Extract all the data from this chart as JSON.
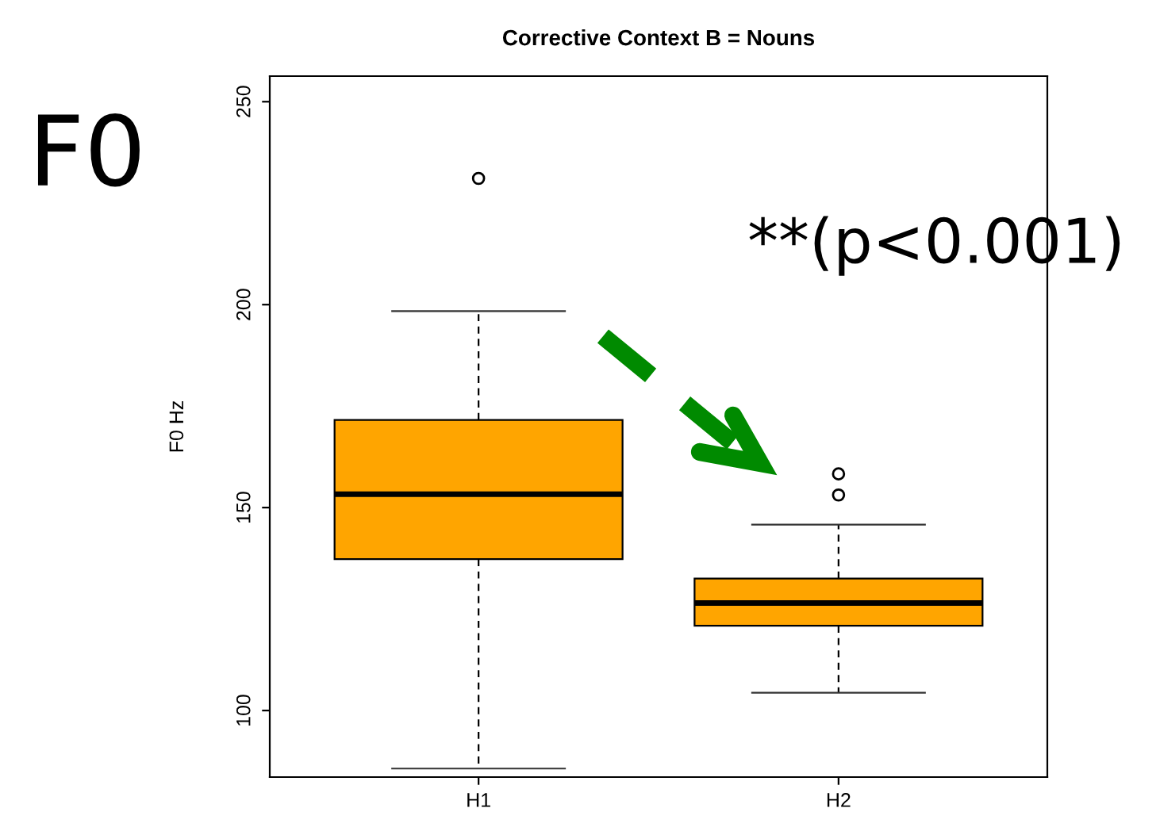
{
  "chart_data": {
    "type": "box",
    "title": "Corrective Context B = Nouns",
    "ylabel": "F0 Hz",
    "categories": [
      "H1",
      "H2"
    ],
    "series": [
      {
        "color": "#ffa500",
        "boxes": [
          {
            "low": 85.7,
            "q1": 137.3,
            "median": 153.3,
            "q3": 171.6,
            "high": 198.4,
            "outliers": [
              231.1
            ]
          },
          {
            "low": 104.4,
            "q1": 120.9,
            "median": 126.5,
            "q3": 132.5,
            "high": 145.8,
            "outliers": [
              158.3,
              153.1
            ]
          }
        ]
      }
    ],
    "ylim": [
      83.6,
      256.3
    ],
    "yticks": [
      100,
      150,
      200,
      250
    ],
    "grid": false,
    "legend": false,
    "annotations": [
      "F0",
      "**(p<0.001)"
    ]
  }
}
